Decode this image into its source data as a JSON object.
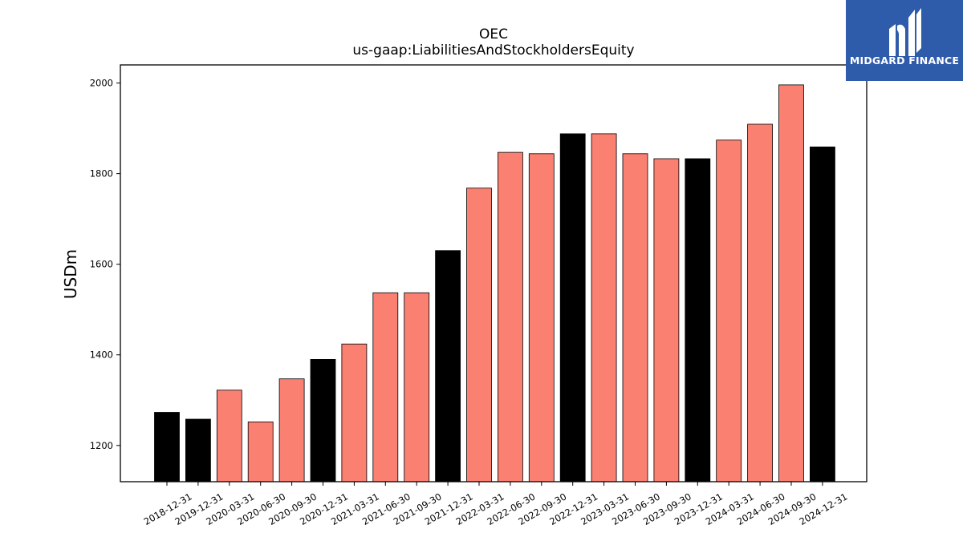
{
  "chart_data": {
    "type": "bar",
    "title": "OEC",
    "subtitle": "us-gaap:LiabilitiesAndStockholdersEquity",
    "xlabel": "",
    "ylabel": "USDm",
    "ylim": [
      1120,
      2040
    ],
    "yticks": [
      1200,
      1400,
      1600,
      1800,
      2000
    ],
    "grid": false,
    "categories": [
      "2018-12-31",
      "2019-12-31",
      "2020-03-31",
      "2020-06-30",
      "2020-09-30",
      "2020-12-31",
      "2021-03-31",
      "2021-06-30",
      "2021-09-30",
      "2021-12-31",
      "2022-03-31",
      "2022-06-30",
      "2022-09-30",
      "2022-12-31",
      "2023-03-31",
      "2023-06-30",
      "2023-09-30",
      "2023-12-31",
      "2024-03-31",
      "2024-06-30",
      "2024-09-30",
      "2024-12-31"
    ],
    "values": [
      1273,
      1258,
      1322,
      1252,
      1347,
      1390,
      1424,
      1537,
      1537,
      1630,
      1768,
      1847,
      1844,
      1888,
      1888,
      1844,
      1833,
      1833,
      1874,
      1909,
      1996,
      1859
    ],
    "bar_colors": [
      "#000000",
      "#000000",
      "#fa8072",
      "#fa8072",
      "#fa8072",
      "#000000",
      "#fa8072",
      "#fa8072",
      "#fa8072",
      "#000000",
      "#fa8072",
      "#fa8072",
      "#fa8072",
      "#000000",
      "#fa8072",
      "#fa8072",
      "#fa8072",
      "#000000",
      "#fa8072",
      "#fa8072",
      "#fa8072",
      "#000000"
    ]
  },
  "logo": {
    "text": "MIDGARD FINANCE",
    "background": "#2f5bab"
  }
}
